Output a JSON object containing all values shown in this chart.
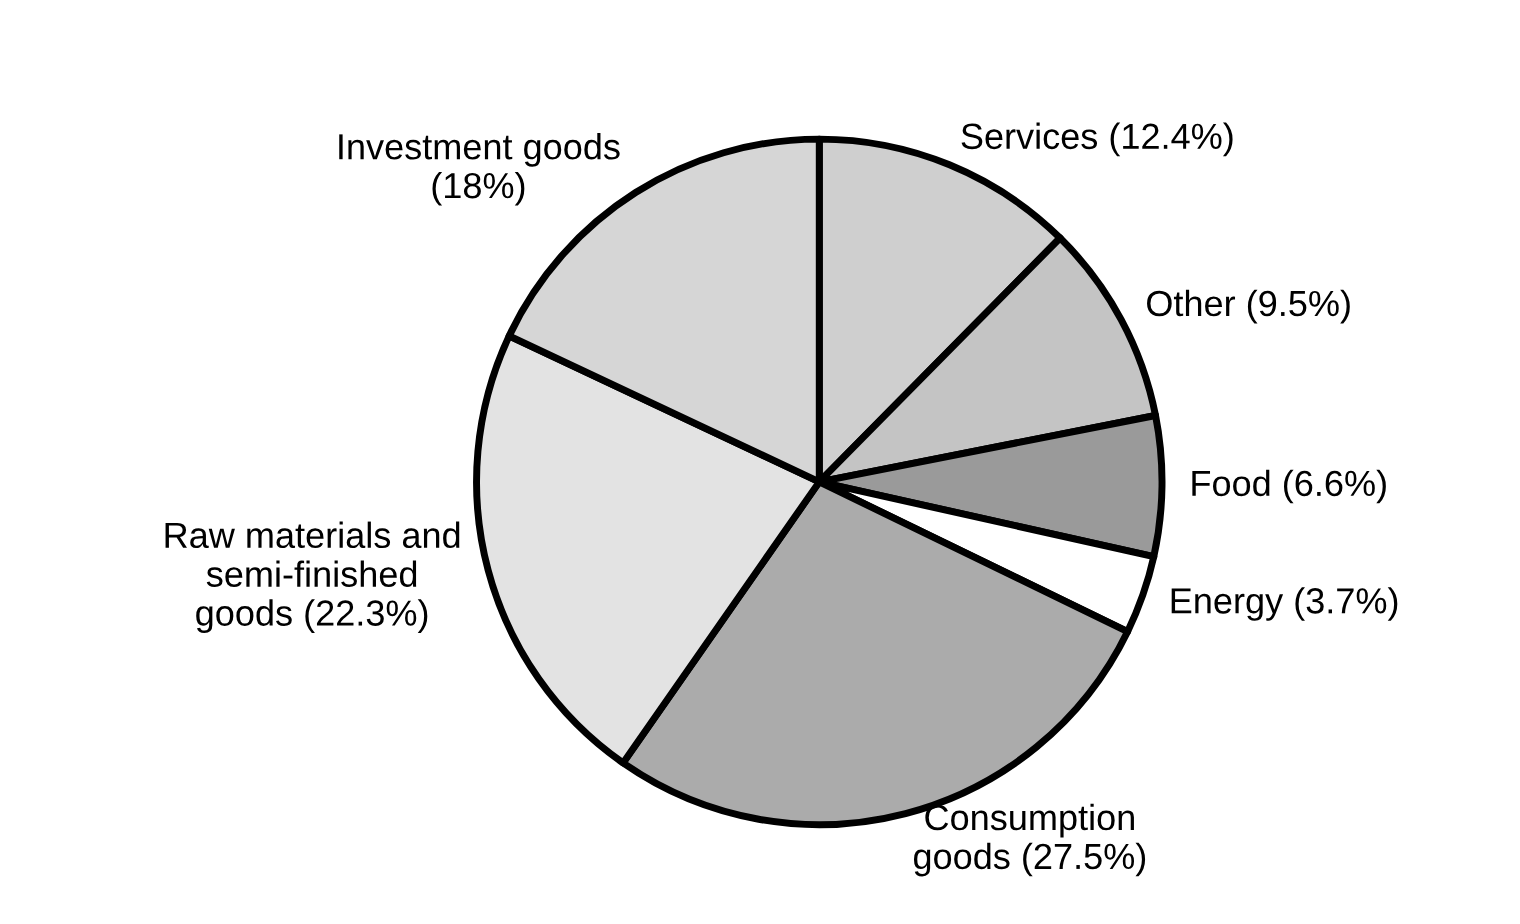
{
  "chart_data": {
    "type": "pie",
    "categories": [
      "Services (12.4%)",
      "Other (9.5%)",
      "Food (6.6%)",
      "Energy (3.7%)",
      "Consumption\ngoods (27.5%)",
      "Raw materials and\nsemi-finished\ngoods (22.3%)",
      "Investment goods\n(18%)"
    ],
    "values": [
      12.4,
      9.5,
      6.6,
      3.7,
      27.5,
      22.3,
      18
    ],
    "colors": [
      "#cfcfcf",
      "#c4c4c4",
      "#9a9a9a",
      "#ffffff",
      "#ababab",
      "#e3e3e3",
      "#d6d6d6"
    ]
  }
}
